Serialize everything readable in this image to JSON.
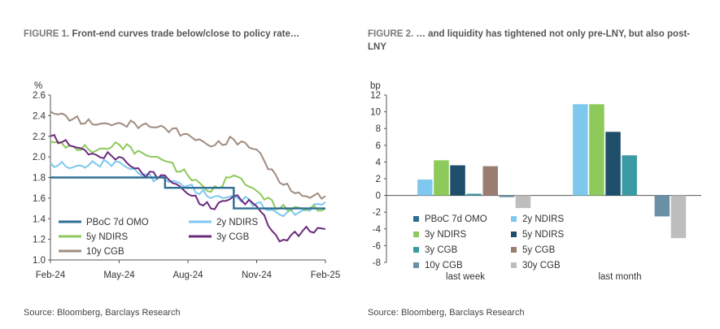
{
  "fig1": {
    "label": "FIGURE 1.",
    "title": "Front-end curves trade below/close to policy rate…",
    "source": "Source: Bloomberg, Barclays Research"
  },
  "fig2": {
    "label": "FIGURE 2.",
    "title": "… and liquidity has tightened not only pre-LNY, but also post-LNY",
    "source": "Source: Bloomberg, Barclays Research"
  },
  "chart_data": [
    {
      "type": "line",
      "title": "Front-end curves trade below/close to policy rate…",
      "ylabel": "%",
      "ylim": [
        1.0,
        2.6
      ],
      "yticks": [
        1.0,
        1.2,
        1.4,
        1.6,
        1.8,
        2.0,
        2.2,
        2.4,
        2.6
      ],
      "xticks": [
        "Feb-24",
        "May-24",
        "Aug-24",
        "Nov-24",
        "Feb-25"
      ],
      "x": [
        "Feb-24",
        "Mar-24",
        "Apr-24",
        "May-24",
        "Jun-24",
        "Jul-24",
        "Aug-24",
        "Sep-24",
        "Oct-24",
        "Nov-24",
        "Dec-24",
        "Jan-25",
        "Feb-25"
      ],
      "grid": false,
      "legend": "bottom-left",
      "series": [
        {
          "name": "PBoC 7d OMO",
          "color": "#2f6e94",
          "step": true,
          "values": [
            1.8,
            1.8,
            1.8,
            1.8,
            1.8,
            1.7,
            1.7,
            1.7,
            1.5,
            1.5,
            1.5,
            1.5,
            1.5
          ]
        },
        {
          "name": "2y NDIRS",
          "color": "#7ec8ef",
          "values": [
            1.94,
            1.9,
            1.93,
            1.95,
            1.82,
            1.78,
            1.72,
            1.6,
            1.62,
            1.55,
            1.44,
            1.48,
            1.56
          ]
        },
        {
          "name": "5y NDIRS",
          "color": "#8dc95b",
          "values": [
            2.15,
            2.1,
            2.06,
            2.12,
            2.04,
            1.96,
            1.82,
            1.66,
            1.82,
            1.67,
            1.5,
            1.5,
            1.5
          ]
        },
        {
          "name": "3y CGB",
          "color": "#6b2a7e",
          "values": [
            2.2,
            2.1,
            2.02,
            2.0,
            1.84,
            1.82,
            1.64,
            1.5,
            1.62,
            1.52,
            1.18,
            1.28,
            1.3
          ]
        },
        {
          "name": "10y CGB",
          "color": "#a08c80",
          "values": [
            2.44,
            2.37,
            2.31,
            2.33,
            2.31,
            2.28,
            2.22,
            2.1,
            2.17,
            2.07,
            1.75,
            1.62,
            1.62
          ]
        }
      ]
    },
    {
      "type": "bar",
      "title": "… and liquidity has tightened not only pre-LNY, but also post-LNY",
      "ylabel": "bp",
      "ylim": [
        -8,
        12
      ],
      "yticks": [
        -8,
        -6,
        -4,
        -2,
        0,
        2,
        4,
        6,
        8,
        10,
        12
      ],
      "categories": [
        "last week",
        "last month"
      ],
      "grid": false,
      "legend": "bottom-left",
      "series": [
        {
          "name": "PBoC 7d OMO",
          "color": "#2f6e94",
          "values": [
            0,
            0
          ]
        },
        {
          "name": "2y NDIRS",
          "color": "#7ec8ef",
          "values": [
            1.9,
            10.9
          ]
        },
        {
          "name": "3y NDIRS",
          "color": "#8dc95b",
          "values": [
            4.2,
            10.9
          ]
        },
        {
          "name": "5y NDIRS",
          "color": "#1f4e6b",
          "values": [
            3.6,
            7.6
          ]
        },
        {
          "name": "3y CGB",
          "color": "#3a9aa4",
          "values": [
            0.2,
            4.8
          ]
        },
        {
          "name": "5y CGB",
          "color": "#9a7d6f",
          "values": [
            3.5,
            0
          ]
        },
        {
          "name": "10y CGB",
          "color": "#6b90a6",
          "values": [
            -0.2,
            -2.5
          ]
        },
        {
          "name": "30y CGB",
          "color": "#bdbdbd",
          "values": [
            -1.5,
            -5.1
          ]
        }
      ]
    }
  ]
}
